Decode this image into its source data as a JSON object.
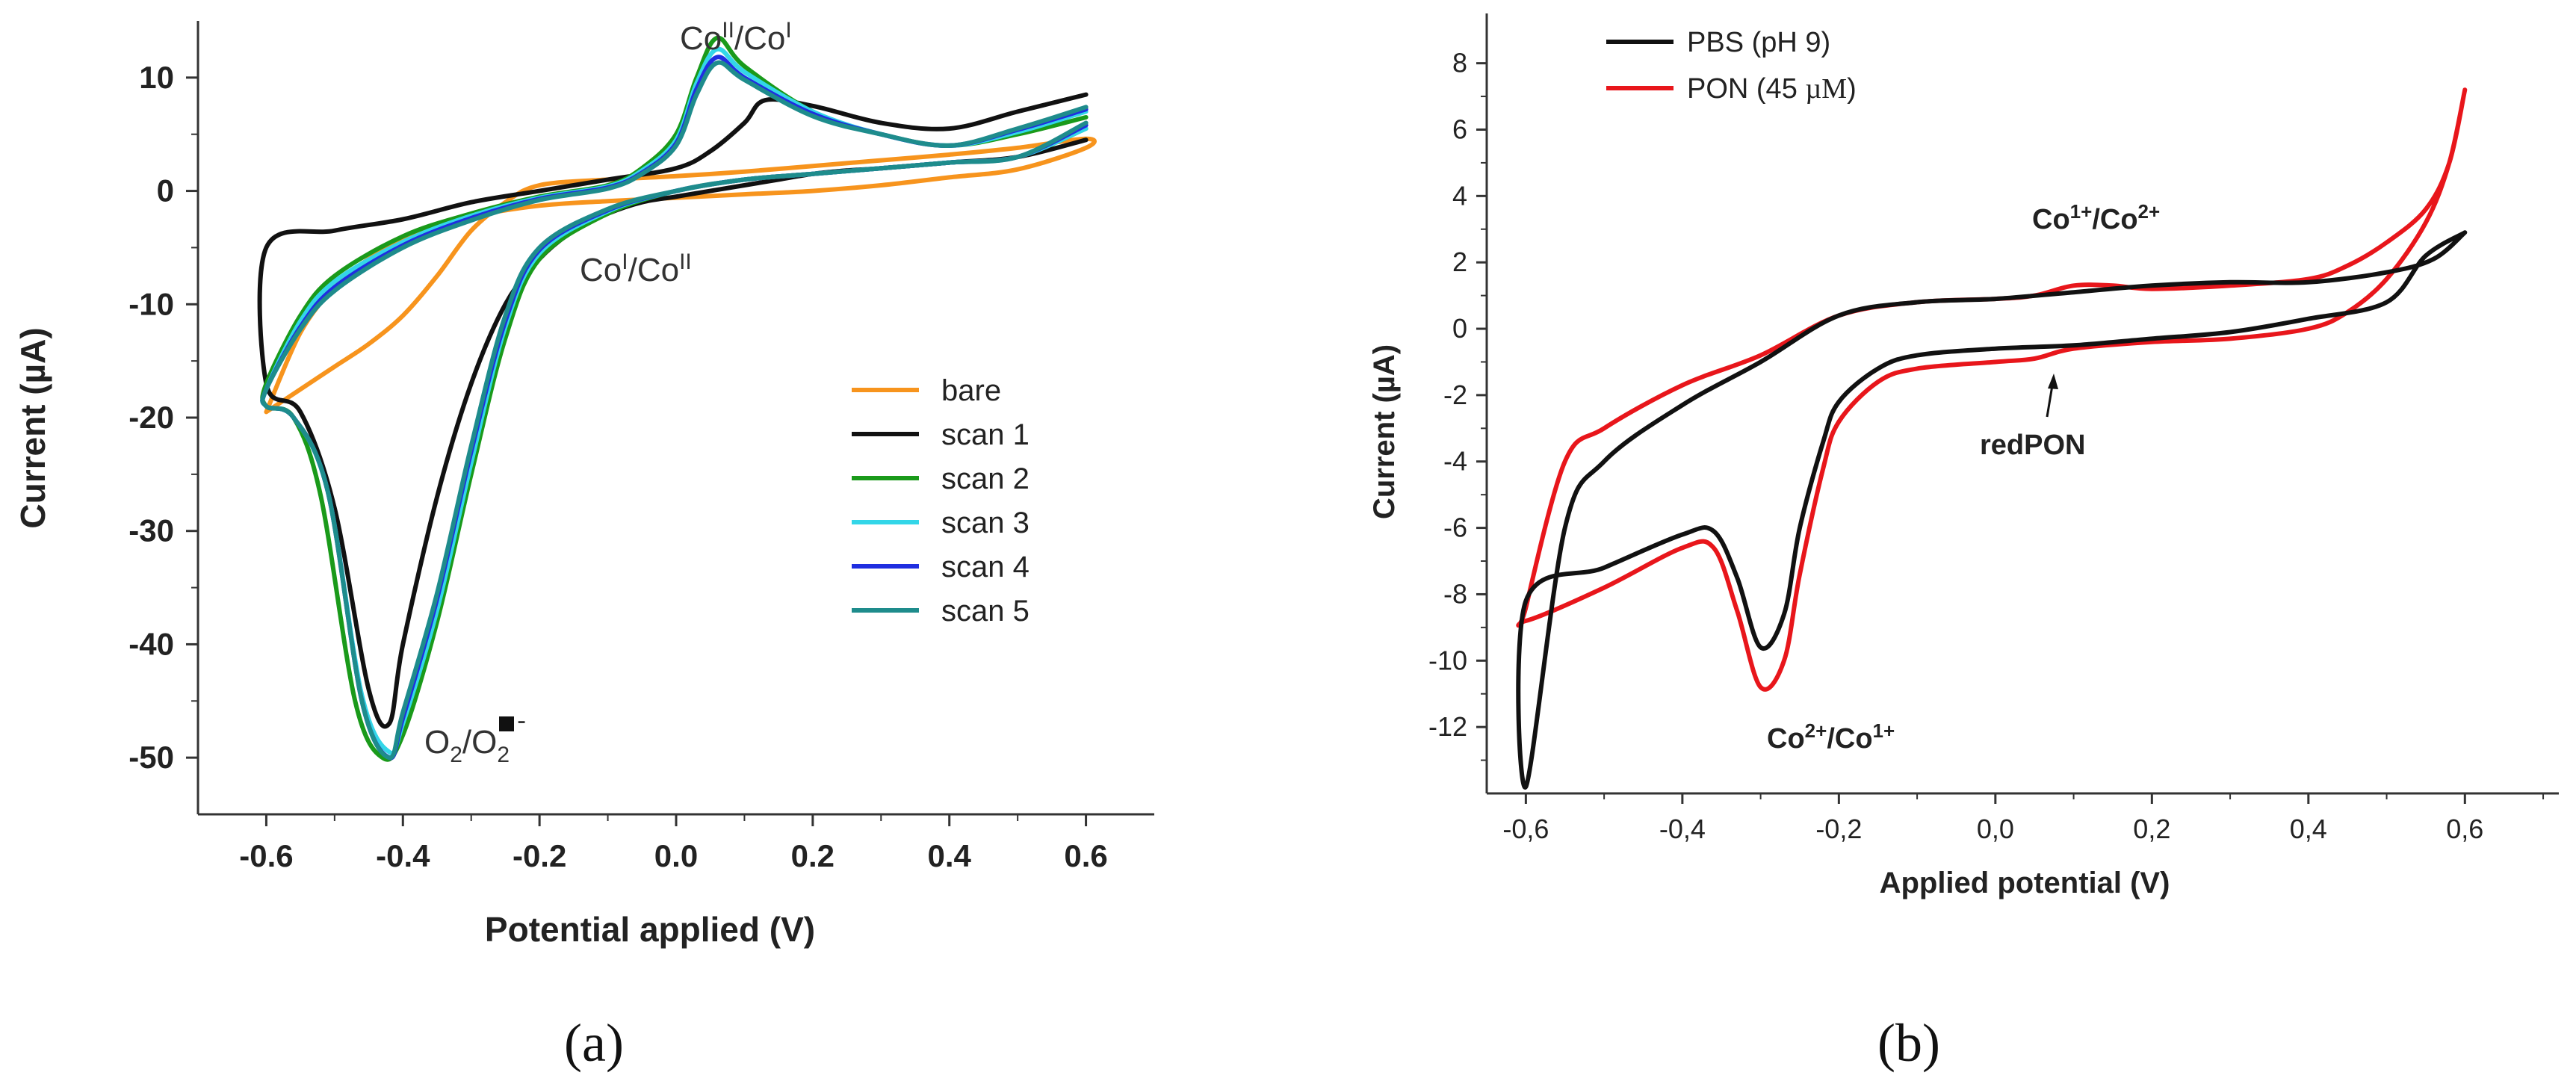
{
  "chart_data": [
    {
      "type": "line",
      "panel_label": "(a)",
      "xlabel": "Potential applied (V)",
      "ylabel": "Current (µA)",
      "xlim": [
        -0.7,
        0.7
      ],
      "ylim": [
        -55,
        15
      ],
      "xticks": [
        -0.6,
        -0.4,
        -0.2,
        0.0,
        0.2,
        0.4,
        0.6
      ],
      "xtick_labels": [
        "-0.6",
        "-0.4",
        "-0.2",
        "0.0",
        "0.2",
        "0.4",
        "0.6"
      ],
      "yticks": [
        10,
        0,
        -10,
        -20,
        -30,
        -40,
        -50
      ],
      "ytick_labels": [
        "10",
        "0",
        "-10",
        "-20",
        "-30",
        "-40",
        "-50"
      ],
      "legend": {
        "placement": "center-right"
      },
      "annotations": {
        "oxidation": {
          "text": "Co",
          "sup1": "II",
          "mid": "/Co",
          "sup2": "I"
        },
        "reduction": {
          "text": "Co",
          "sup1": "I",
          "mid": "/Co",
          "sup2": "II"
        },
        "oxygen": {
          "text": "O",
          "sub1": "2",
          "mid": "/O",
          "sub2": "2",
          "tail": " -"
        }
      },
      "series": [
        {
          "name": "bare",
          "color": "#F7941D",
          "x": [
            -0.6,
            -0.55,
            -0.5,
            -0.45,
            -0.4,
            -0.35,
            -0.3,
            -0.25,
            -0.2,
            -0.1,
            0.0,
            0.1,
            0.2,
            0.3,
            0.4,
            0.5,
            0.6,
            0.6,
            0.5,
            0.4,
            0.3,
            0.2,
            0.1,
            0.0,
            -0.1,
            -0.2,
            -0.3,
            -0.4,
            -0.45,
            -0.5,
            -0.55,
            -0.6
          ],
          "y": [
            -19.5,
            -17.5,
            -15.5,
            -13.5,
            -11.0,
            -7.5,
            -3.5,
            -1.0,
            0.5,
            1.0,
            1.3,
            1.7,
            2.2,
            2.7,
            3.2,
            3.8,
            4.6,
            3.8,
            1.9,
            1.2,
            0.5,
            0.0,
            -0.3,
            -0.6,
            -0.9,
            -1.3,
            -2.3,
            -4.3,
            -6.0,
            -8.5,
            -12.5,
            -19.5
          ]
        },
        {
          "name": "scan 1",
          "color": "#111111",
          "x": [
            0.6,
            0.5,
            0.4,
            0.3,
            0.25,
            0.2,
            0.15,
            0.1,
            0.05,
            0.0,
            -0.05,
            -0.1,
            -0.15,
            -0.2,
            -0.25,
            -0.3,
            -0.35,
            -0.4,
            -0.42,
            -0.45,
            -0.5,
            -0.55,
            -0.6,
            -0.6,
            -0.5,
            -0.4,
            -0.3,
            -0.2,
            -0.1,
            0.0,
            0.05,
            0.1,
            0.13,
            0.2,
            0.3,
            0.4,
            0.5,
            0.6
          ],
          "y": [
            4.5,
            3.0,
            2.5,
            2.0,
            1.8,
            1.5,
            1.0,
            0.5,
            0.0,
            -0.5,
            -1.0,
            -2.0,
            -3.5,
            -6.0,
            -10.0,
            -17.0,
            -27.0,
            -40.0,
            -47.0,
            -44.0,
            -28.0,
            -19.5,
            -17.0,
            -5.0,
            -3.5,
            -2.5,
            -1.0,
            0.0,
            1.0,
            2.0,
            3.5,
            6.0,
            8.0,
            7.5,
            6.0,
            5.5,
            7.0,
            8.5
          ]
        },
        {
          "name": "scan 2",
          "color": "#1A9A1A",
          "x": [
            0.6,
            0.5,
            0.4,
            0.3,
            0.2,
            0.1,
            0.0,
            -0.1,
            -0.2,
            -0.25,
            -0.3,
            -0.35,
            -0.4,
            -0.43,
            -0.47,
            -0.52,
            -0.56,
            -0.6,
            -0.6,
            -0.55,
            -0.5,
            -0.4,
            -0.3,
            -0.2,
            -0.1,
            -0.05,
            0.0,
            0.03,
            0.06,
            0.1,
            0.2,
            0.3,
            0.4,
            0.5,
            0.6
          ],
          "y": [
            5.5,
            3.0,
            2.5,
            2.0,
            1.5,
            1.0,
            0.0,
            -2.0,
            -6.0,
            -13.0,
            -25.0,
            -38.0,
            -48.0,
            -50.0,
            -45.0,
            -27.0,
            -20.0,
            -19.0,
            -17.0,
            -11.0,
            -7.5,
            -4.0,
            -2.0,
            -0.5,
            0.5,
            2.0,
            5.0,
            10.0,
            13.5,
            11.0,
            7.0,
            5.0,
            4.0,
            5.0,
            6.5
          ]
        },
        {
          "name": "scan 3",
          "color": "#33D6E8",
          "x": [
            0.6,
            0.5,
            0.4,
            0.3,
            0.2,
            0.1,
            0.0,
            -0.1,
            -0.2,
            -0.25,
            -0.3,
            -0.35,
            -0.4,
            -0.42,
            -0.46,
            -0.51,
            -0.56,
            -0.6,
            -0.6,
            -0.55,
            -0.5,
            -0.4,
            -0.3,
            -0.2,
            -0.1,
            -0.05,
            0.0,
            0.03,
            0.06,
            0.1,
            0.2,
            0.3,
            0.4,
            0.5,
            0.6
          ],
          "y": [
            5.5,
            3.0,
            2.5,
            2.0,
            1.5,
            1.0,
            0.0,
            -1.8,
            -5.5,
            -12.0,
            -24.0,
            -37.0,
            -47.0,
            -49.5,
            -44.5,
            -26.5,
            -20.0,
            -19.0,
            -17.5,
            -11.5,
            -8.0,
            -4.5,
            -2.2,
            -0.6,
            0.4,
            1.8,
            4.5,
            9.5,
            12.5,
            10.5,
            7.0,
            5.0,
            4.0,
            5.2,
            7.0
          ]
        },
        {
          "name": "scan 4",
          "color": "#1F2EE0",
          "x": [
            0.6,
            0.5,
            0.4,
            0.3,
            0.2,
            0.1,
            0.0,
            -0.1,
            -0.2,
            -0.25,
            -0.3,
            -0.35,
            -0.4,
            -0.42,
            -0.46,
            -0.51,
            -0.56,
            -0.6,
            -0.6,
            -0.55,
            -0.5,
            -0.4,
            -0.3,
            -0.2,
            -0.1,
            -0.05,
            0.0,
            0.03,
            0.06,
            0.1,
            0.2,
            0.3,
            0.4,
            0.5,
            0.6
          ],
          "y": [
            5.8,
            3.0,
            2.5,
            2.0,
            1.5,
            1.0,
            0.0,
            -1.7,
            -5.2,
            -11.5,
            -23.0,
            -36.0,
            -46.5,
            -50.0,
            -45.0,
            -26.5,
            -20.0,
            -19.0,
            -17.5,
            -12.0,
            -8.5,
            -4.8,
            -2.4,
            -0.7,
            0.3,
            1.6,
            4.2,
            9.0,
            11.8,
            10.0,
            6.8,
            5.0,
            4.0,
            5.4,
            7.2
          ]
        },
        {
          "name": "scan 5",
          "color": "#1E8C8C",
          "x": [
            0.6,
            0.5,
            0.4,
            0.3,
            0.2,
            0.1,
            0.0,
            -0.1,
            -0.2,
            -0.25,
            -0.3,
            -0.35,
            -0.4,
            -0.42,
            -0.46,
            -0.51,
            -0.56,
            -0.6,
            -0.6,
            -0.55,
            -0.5,
            -0.4,
            -0.3,
            -0.2,
            -0.1,
            -0.05,
            0.0,
            0.03,
            0.06,
            0.1,
            0.2,
            0.3,
            0.4,
            0.5,
            0.6
          ],
          "y": [
            6.0,
            3.0,
            2.5,
            2.0,
            1.5,
            1.0,
            0.0,
            -1.6,
            -5.0,
            -11.0,
            -22.5,
            -35.5,
            -46.0,
            -50.0,
            -45.0,
            -26.5,
            -20.0,
            -19.0,
            -17.5,
            -12.2,
            -8.8,
            -5.0,
            -2.6,
            -0.8,
            0.2,
            1.5,
            4.0,
            8.5,
            11.3,
            9.8,
            6.6,
            5.0,
            4.0,
            5.5,
            7.4
          ]
        }
      ]
    },
    {
      "type": "line",
      "panel_label": "(b)",
      "xlabel": "Applied potential (V)",
      "ylabel": "Current (µA)",
      "xlim": [
        -0.65,
        0.72
      ],
      "ylim": [
        -14,
        9.5
      ],
      "xticks": [
        -0.6,
        -0.4,
        -0.2,
        0.0,
        0.2,
        0.4,
        0.6
      ],
      "xtick_labels": [
        "-0,6",
        "-0,4",
        "-0,2",
        "0,0",
        "0,2",
        "0,4",
        "0,6"
      ],
      "yticks": [
        8,
        6,
        4,
        2,
        0,
        -2,
        -4,
        -6,
        -8,
        -10,
        -12
      ],
      "ytick_labels": [
        "8",
        "6",
        "4",
        "2",
        "0",
        "-2",
        "-4",
        "-6",
        "-8",
        "-10",
        "-12"
      ],
      "legend": {
        "placement": "top-left"
      },
      "annotations": {
        "oxidation": {
          "text": "Co",
          "sup1": "1+",
          "mid": "/Co",
          "sup2": "2+"
        },
        "reduction": {
          "text": "Co",
          "sup1": "2+",
          "mid": "/Co",
          "sup2": "1+"
        },
        "redpon": {
          "text": "redPON"
        }
      },
      "series": [
        {
          "name": "PBS (pH 9)",
          "name_main": "PBS (pH 9)",
          "color": "#111111",
          "x": [
            0.6,
            0.55,
            0.5,
            0.4,
            0.3,
            0.2,
            0.1,
            0.0,
            -0.1,
            -0.15,
            -0.2,
            -0.22,
            -0.25,
            -0.27,
            -0.3,
            -0.33,
            -0.36,
            -0.4,
            -0.5,
            -0.6,
            -0.6,
            -0.55,
            -0.5,
            -0.4,
            -0.3,
            -0.2,
            -0.1,
            0.0,
            0.1,
            0.2,
            0.3,
            0.4,
            0.5,
            0.56,
            0.6
          ],
          "y": [
            2.9,
            2.2,
            0.8,
            0.3,
            -0.1,
            -0.3,
            -0.5,
            -0.6,
            -0.8,
            -1.2,
            -2.2,
            -3.4,
            -6.0,
            -8.6,
            -9.6,
            -7.5,
            -6.1,
            -6.2,
            -7.2,
            -8.2,
            -13.8,
            -6.0,
            -4.0,
            -2.3,
            -1.0,
            0.4,
            0.8,
            0.9,
            1.1,
            1.3,
            1.4,
            1.4,
            1.7,
            2.1,
            2.9
          ]
        },
        {
          "name": "PON (45 µM)",
          "name_main": "PON (45 ",
          "name_unit": "µM",
          "name_tail": ")",
          "color": "#E8161B",
          "x": [
            0.6,
            0.58,
            0.55,
            0.5,
            0.45,
            0.4,
            0.3,
            0.2,
            0.1,
            0.05,
            0.0,
            -0.1,
            -0.15,
            -0.2,
            -0.22,
            -0.25,
            -0.27,
            -0.3,
            -0.33,
            -0.36,
            -0.4,
            -0.5,
            -0.6,
            -0.6,
            -0.55,
            -0.5,
            -0.4,
            -0.3,
            -0.2,
            -0.1,
            0.0,
            0.05,
            0.1,
            0.15,
            0.2,
            0.3,
            0.4,
            0.45,
            0.5,
            0.55,
            0.58,
            0.6
          ],
          "y": [
            7.2,
            5.0,
            3.2,
            1.5,
            0.5,
            0.0,
            -0.3,
            -0.4,
            -0.6,
            -0.9,
            -1.0,
            -1.2,
            -1.6,
            -2.8,
            -4.2,
            -7.4,
            -10.0,
            -10.8,
            -8.5,
            -6.6,
            -6.6,
            -7.8,
            -8.8,
            -8.4,
            -4.0,
            -3.0,
            -1.7,
            -0.8,
            0.4,
            0.8,
            0.9,
            1.0,
            1.3,
            1.3,
            1.2,
            1.3,
            1.5,
            1.9,
            2.6,
            3.6,
            5.0,
            7.2
          ]
        }
      ]
    }
  ]
}
